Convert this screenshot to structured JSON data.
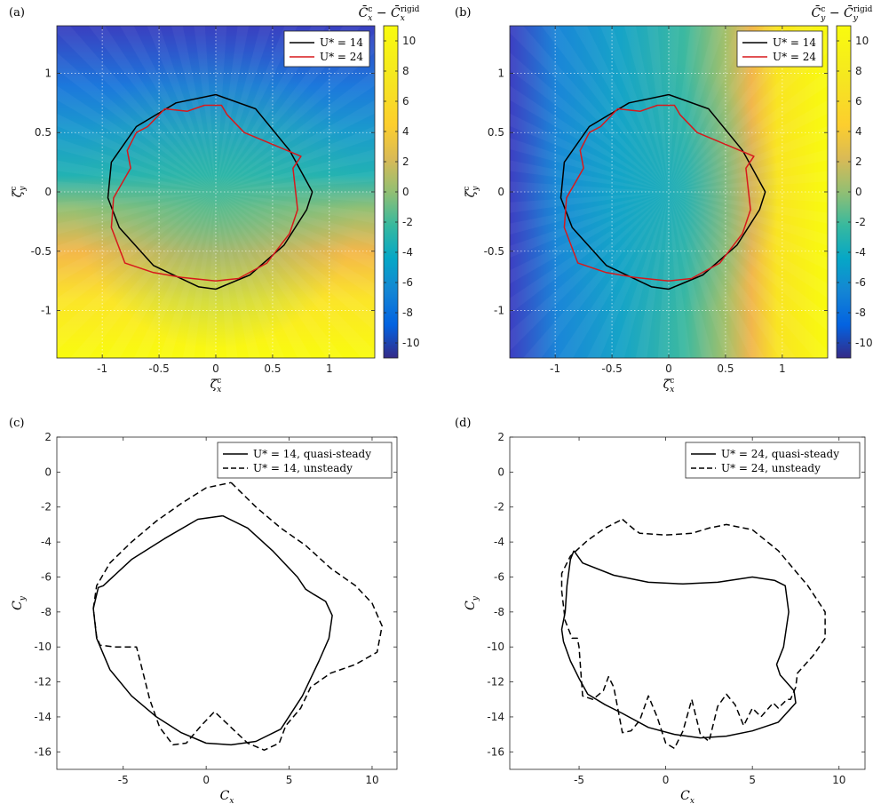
{
  "chart_data": [
    {
      "type": "heatmap",
      "panel_label": "(a)",
      "xlabel": "ζ̇_x^c",
      "ylabel": "ζ̇_y^c",
      "colorbar_label": "C̄_x^c − C̄_x^rigid",
      "xlim": [
        -1.4,
        1.4
      ],
      "ylim": [
        -1.4,
        1.4
      ],
      "xticks": [
        -1,
        -0.5,
        0,
        0.5,
        1
      ],
      "xticklabels": [
        "-1",
        "-0.5",
        "0",
        "0.5",
        "1"
      ],
      "yticks": [
        1,
        0.5,
        0,
        -0.5,
        -1
      ],
      "yticklabels": [
        "1",
        "0.5",
        "0",
        "-0.5",
        "-1"
      ],
      "clim": [
        -11,
        11
      ],
      "cticks": [
        10,
        8,
        6,
        4,
        2,
        0,
        -2,
        -4,
        -6,
        -8,
        -10
      ],
      "cticklabels": [
        "10",
        "8",
        "6",
        "4",
        "2",
        "0",
        "-2",
        "-4",
        "-6",
        "-8",
        "-10"
      ],
      "grid": true,
      "legend_position": "top-right",
      "series": [
        {
          "name": "U* = 14",
          "color": "#000000",
          "x": [
            0.0,
            0.3,
            0.6,
            0.8,
            0.85,
            0.65,
            0.35,
            0.0,
            -0.35,
            -0.7,
            -0.92,
            -0.95,
            -0.85,
            -0.55,
            -0.15,
            0.0
          ],
          "y": [
            -0.82,
            -0.7,
            -0.45,
            -0.15,
            0.0,
            0.35,
            0.7,
            0.82,
            0.75,
            0.55,
            0.25,
            -0.05,
            -0.3,
            -0.62,
            -0.8,
            -0.82
          ]
        },
        {
          "name": "U* = 24",
          "color": "#d7191c",
          "x": [
            -0.6,
            -0.45,
            -0.25,
            -0.1,
            0.05,
            0.1,
            0.25,
            0.55,
            0.75,
            0.68,
            0.72,
            0.65,
            0.45,
            0.2,
            0.0,
            -0.3,
            -0.55,
            -0.8,
            -0.92,
            -0.9,
            -0.75,
            -0.78,
            -0.7,
            -0.6
          ],
          "y": [
            0.55,
            0.7,
            0.68,
            0.73,
            0.73,
            0.65,
            0.5,
            0.38,
            0.3,
            0.2,
            -0.15,
            -0.35,
            -0.6,
            -0.73,
            -0.75,
            -0.72,
            -0.68,
            -0.6,
            -0.3,
            -0.05,
            0.2,
            0.35,
            0.5,
            0.55
          ]
        }
      ]
    },
    {
      "type": "heatmap",
      "panel_label": "(b)",
      "xlabel": "ζ̇_x^c",
      "ylabel": "ζ̇_y^c",
      "colorbar_label": "C̄_y^c − C̄_y^rigid",
      "xlim": [
        -1.4,
        1.4
      ],
      "ylim": [
        -1.4,
        1.4
      ],
      "xticks": [
        -1,
        -0.5,
        0,
        0.5,
        1
      ],
      "xticklabels": [
        "-1",
        "-0.5",
        "0",
        "0.5",
        "1"
      ],
      "yticks": [
        1,
        0.5,
        0,
        -0.5,
        -1
      ],
      "yticklabels": [
        "1",
        "0.5",
        "0",
        "-0.5",
        "-1"
      ],
      "clim": [
        -11,
        11
      ],
      "cticks": [
        10,
        8,
        6,
        4,
        2,
        0,
        -2,
        -4,
        -6,
        -8,
        -10
      ],
      "cticklabels": [
        "10",
        "8",
        "6",
        "4",
        "2",
        "0",
        "-2",
        "-4",
        "-6",
        "-8",
        "-10"
      ],
      "grid": true,
      "legend_position": "top-right",
      "series": [
        {
          "name": "U* = 14",
          "color": "#000000",
          "x": [
            0.0,
            0.3,
            0.6,
            0.8,
            0.85,
            0.65,
            0.35,
            0.0,
            -0.35,
            -0.7,
            -0.92,
            -0.95,
            -0.85,
            -0.55,
            -0.15,
            0.0
          ],
          "y": [
            -0.82,
            -0.7,
            -0.45,
            -0.15,
            0.0,
            0.35,
            0.7,
            0.82,
            0.75,
            0.55,
            0.25,
            -0.05,
            -0.3,
            -0.62,
            -0.8,
            -0.82
          ]
        },
        {
          "name": "U* = 24",
          "color": "#d7191c",
          "x": [
            -0.6,
            -0.45,
            -0.25,
            -0.1,
            0.05,
            0.1,
            0.25,
            0.55,
            0.75,
            0.68,
            0.72,
            0.65,
            0.45,
            0.2,
            0.0,
            -0.3,
            -0.55,
            -0.8,
            -0.92,
            -0.9,
            -0.75,
            -0.78,
            -0.7,
            -0.6
          ],
          "y": [
            0.55,
            0.7,
            0.68,
            0.73,
            0.73,
            0.65,
            0.5,
            0.38,
            0.3,
            0.2,
            -0.15,
            -0.35,
            -0.6,
            -0.73,
            -0.75,
            -0.72,
            -0.68,
            -0.6,
            -0.3,
            -0.05,
            0.2,
            0.35,
            0.5,
            0.55
          ]
        }
      ]
    },
    {
      "type": "line",
      "panel_label": "(c)",
      "xlabel": "C_x",
      "ylabel": "C_y",
      "xlim": [
        -9,
        11.5
      ],
      "ylim": [
        -17,
        2
      ],
      "xticks": [
        -5,
        0,
        5,
        10
      ],
      "xticklabels": [
        "-5",
        "0",
        "5",
        "10"
      ],
      "yticks": [
        2,
        0,
        -2,
        -4,
        -6,
        -8,
        -10,
        -12,
        -14,
        -16
      ],
      "yticklabels": [
        "2",
        "0",
        "-2",
        "-4",
        "-6",
        "-8",
        "-10",
        "-12",
        "-14",
        "-16"
      ],
      "grid": false,
      "legend_position": "top-right",
      "series": [
        {
          "name": "U* = 14, quasi-steady",
          "dash": "solid",
          "x": [
            1.0,
            2.5,
            4.0,
            5.5,
            6.0,
            6.5,
            7.2,
            7.6,
            7.4,
            6.8,
            5.8,
            4.5,
            3.0,
            1.5,
            0.0,
            -1.5,
            -3.0,
            -4.5,
            -5.8,
            -6.6,
            -6.8,
            -6.5,
            -6.2,
            -4.5,
            -2.5,
            -0.5,
            1.0
          ],
          "y": [
            -2.5,
            -3.2,
            -4.5,
            -6.0,
            -6.7,
            -7.0,
            -7.4,
            -8.2,
            -9.5,
            -10.8,
            -12.8,
            -14.7,
            -15.4,
            -15.6,
            -15.5,
            -14.9,
            -14.0,
            -12.8,
            -11.3,
            -9.5,
            -7.8,
            -6.6,
            -6.5,
            -5.0,
            -3.8,
            -2.7,
            -2.5
          ]
        },
        {
          "name": "U* = 14, unsteady",
          "dash": "dashed",
          "x": [
            1.5,
            3.0,
            4.5,
            6.0,
            7.5,
            9.0,
            10.0,
            10.6,
            10.3,
            9.0,
            7.5,
            6.3,
            5.7,
            4.8,
            4.4,
            3.5,
            2.5,
            1.5,
            0.5,
            -0.3,
            -1.2,
            -2.0,
            -2.8,
            -3.4,
            -3.8,
            -4.2,
            -5.5,
            -6.4,
            -6.6,
            -6.8,
            -6.6,
            -5.8,
            -4.5,
            -3.0,
            -1.5,
            0.0,
            1.5
          ],
          "y": [
            -0.6,
            -2.0,
            -3.2,
            -4.2,
            -5.5,
            -6.5,
            -7.5,
            -8.8,
            -10.3,
            -11.0,
            -11.5,
            -12.3,
            -13.5,
            -14.5,
            -15.5,
            -15.9,
            -15.5,
            -14.6,
            -13.7,
            -14.5,
            -15.5,
            -15.6,
            -14.6,
            -13.0,
            -11.5,
            -10.0,
            -10.0,
            -9.9,
            -9.4,
            -7.8,
            -6.5,
            -5.2,
            -4.0,
            -2.8,
            -1.8,
            -0.9,
            -0.6
          ]
        }
      ]
    },
    {
      "type": "line",
      "panel_label": "(d)",
      "xlabel": "C_x",
      "ylabel": "C_y",
      "xlim": [
        -9,
        11.5
      ],
      "ylim": [
        -17,
        2
      ],
      "xticks": [
        -5,
        0,
        5,
        10
      ],
      "xticklabels": [
        "-5",
        "0",
        "5",
        "10"
      ],
      "yticks": [
        2,
        0,
        -2,
        -4,
        -6,
        -8,
        -10,
        -12,
        -14,
        -16
      ],
      "yticklabels": [
        "2",
        "0",
        "-2",
        "-4",
        "-6",
        "-8",
        "-10",
        "-12",
        "-14",
        "-16"
      ],
      "grid": false,
      "legend_position": "top-right",
      "series": [
        {
          "name": "U* = 24, quasi-steady",
          "dash": "solid",
          "x": [
            -5.3,
            -4.8,
            -3.0,
            -1.0,
            1.0,
            3.0,
            5.0,
            6.3,
            6.9,
            7.1,
            6.8,
            6.4,
            6.6,
            7.4,
            7.5,
            6.5,
            5.0,
            3.5,
            2.0,
            0.5,
            -1.0,
            -2.5,
            -3.5,
            -4.5,
            -5.0,
            -5.5,
            -5.9,
            -6.0,
            -5.8,
            -5.7,
            -5.5,
            -5.3
          ],
          "y": [
            -4.5,
            -5.2,
            -5.9,
            -6.3,
            -6.4,
            -6.3,
            -6.0,
            -6.2,
            -6.5,
            -8.0,
            -10.0,
            -11.0,
            -11.6,
            -12.5,
            -13.2,
            -14.3,
            -14.8,
            -15.1,
            -15.2,
            -15.0,
            -14.6,
            -13.8,
            -13.3,
            -12.7,
            -11.8,
            -10.8,
            -9.7,
            -9.0,
            -8.0,
            -6.5,
            -5.0,
            -4.5
          ]
        },
        {
          "name": "U* = 24, unsteady",
          "dash": "dashed",
          "x": [
            -2.5,
            -1.8,
            -1.5,
            0.0,
            1.5,
            2.5,
            3.5,
            5.0,
            6.5,
            8.2,
            9.2,
            9.2,
            8.5,
            7.6,
            7.5,
            7.2,
            7.0,
            6.5,
            6.2,
            5.5,
            5.0,
            4.5,
            4.0,
            3.5,
            3.0,
            2.5,
            2.0,
            1.5,
            1.0,
            0.5,
            0.0,
            -0.5,
            -1.0,
            -1.5,
            -2.0,
            -2.5,
            -3.0,
            -3.3,
            -3.6,
            -4.2,
            -4.8,
            -5.0,
            -5.1,
            -5.4,
            -5.8,
            -6.0,
            -6.0,
            -5.5,
            -4.5,
            -3.5,
            -2.5
          ],
          "y": [
            -2.7,
            -3.3,
            -3.5,
            -3.6,
            -3.5,
            -3.2,
            -3.0,
            -3.3,
            -4.5,
            -6.5,
            -8.0,
            -9.5,
            -10.5,
            -11.5,
            -12.3,
            -13.0,
            -13.0,
            -13.5,
            -13.2,
            -14.0,
            -13.5,
            -14.5,
            -13.3,
            -12.7,
            -13.4,
            -15.4,
            -15.0,
            -13.0,
            -14.8,
            -15.8,
            -15.5,
            -14.0,
            -12.8,
            -14.2,
            -14.8,
            -14.9,
            -12.3,
            -11.7,
            -12.5,
            -13.0,
            -12.8,
            -10.0,
            -9.5,
            -9.5,
            -8.5,
            -6.8,
            -5.8,
            -4.8,
            -3.9,
            -3.2,
            -2.7
          ]
        }
      ]
    }
  ]
}
